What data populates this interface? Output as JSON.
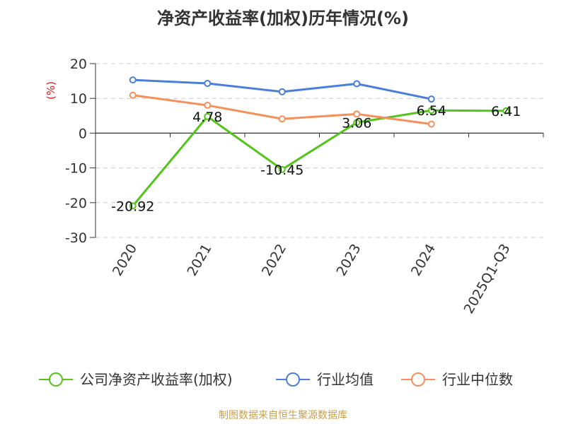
{
  "chart_data": {
    "type": "line",
    "title": "净资产收益率(加权)历年情况(%)",
    "ylabel": "(%)",
    "xlabel": "",
    "categories": [
      "2020",
      "2021",
      "2022",
      "2023",
      "2024",
      "2025Q1-Q3"
    ],
    "ylim": [
      -30,
      20
    ],
    "yticks": [
      20,
      10,
      0,
      -10,
      -20,
      -30
    ],
    "grid": true,
    "legend_position": "bottom",
    "series": [
      {
        "name": "公司净资产收益率(加权)",
        "color": "#52c41a",
        "values": [
          -20.92,
          4.78,
          -10.45,
          3.06,
          6.54,
          6.41
        ],
        "data_labels": [
          "-20.92",
          "4.78",
          "-10.45",
          "3.06",
          "6.54",
          "6.41"
        ]
      },
      {
        "name": "行业均值",
        "color": "#4a7fd9",
        "values": [
          15.3,
          14.3,
          11.9,
          14.2,
          9.8,
          null
        ]
      },
      {
        "name": "行业中位数",
        "color": "#f5905a",
        "values": [
          10.9,
          8.0,
          4.1,
          5.5,
          2.6,
          null
        ]
      }
    ]
  },
  "source": "制图数据来自恒生聚源数据库"
}
